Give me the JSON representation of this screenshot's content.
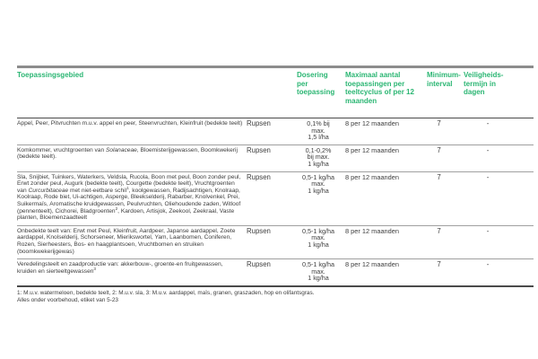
{
  "colors": {
    "accent_green": "#2bb673",
    "body_text": "#3d3d3d",
    "rule_dark": "#4a4a4a",
    "rule_light": "#a0a0a0",
    "rule_top": "#8c8c8c"
  },
  "table": {
    "headers": {
      "toepassingsgebied": "Toepassingsgebied",
      "plaag": "",
      "dosering": "Dosering\nper\ntoepassing",
      "maximaal": "Maximaal aantal\ntoepassingen per\nteeltcyclus of per 12\nmaanden",
      "interval": "Minimum-\ninterval",
      "termijn": "Veiligheids-\ntermijn in\ndagen"
    },
    "rows": [
      {
        "toepassingsgebied": [
          {
            "t": "Appel, Peer, Pitvruchten m.u.v. appel en peer, Steenvruchten, Kleinfruit (bedekte teelt)"
          }
        ],
        "plaag": "Rupsen",
        "dosering": "0,1% bij\nmax.\n1,5 l/ha",
        "maximaal": "8 per 12 maanden",
        "interval": "7",
        "termijn": "-"
      },
      {
        "toepassingsgebied": [
          {
            "t": "Komkommer, vruchtgroenten van "
          },
          {
            "t": "Solanaceae",
            "i": true
          },
          {
            "t": ", Bloemisterijgewassen, Boomkwekerij (bedekte teelt)."
          }
        ],
        "plaag": "Rupsen",
        "dosering": "0,1-0,2%\nbij max.\n1 kg/ha",
        "maximaal": "8 per 12 maanden",
        "interval": "7",
        "termijn": "-"
      },
      {
        "toepassingsgebied": [
          {
            "t": "Sla, Snijbiet, Tuinkers, Waterkers, Veldsla, Rucola, Boon met peul, Boon zonder peul, Erwt zonder peul, Augurk (bedekte teelt), Courgette (bedekte teelt), Vruchtgroenten van "
          },
          {
            "t": "Curcurbitaceae",
            "i": true
          },
          {
            "t": " met niet-eetbare schil"
          },
          {
            "t": "1",
            "sup": true
          },
          {
            "t": ", koolgewassen, Radijsachtigen, Knolraap, Koolraap, Rode biet, Ui-achtigen, Asperge, Bleekselderij, Rabarber, Knolvenkel, Prei, Suikermaïs, Aromatische kruidgewassen, Peulvruchten, Oliehoudende zaden, Witloof (pennenteelt), Cichorei, Bladgroenten"
          },
          {
            "t": "2",
            "sup": true
          },
          {
            "t": ", Kardoen, Artisjok, Zeekool, Zeekraal, Vaste planten, Bloemenzaadteelt"
          }
        ],
        "plaag": "Rupsen",
        "dosering": "0,5-1 kg/ha\nmax.\n1 kg/ha",
        "maximaal": "8 per 12 maanden",
        "interval": "7",
        "termijn": "-"
      },
      {
        "toepassingsgebied": [
          {
            "t": "Onbedekte teelt van: Erwt met Peul, Kleinfruit, Aardpeer, Japanse aardappel, Zoete aardappel, Knolselderij, Schorseneer, Mierikswortel, Yam, Laanbomen, Coniferen, Rozen, Sierheesters, Bos- en haagplantsoen, Vruchtbomen en struiken (boomkwekerijgewas)"
          }
        ],
        "plaag": "Rupsen",
        "dosering": "0,5-1 kg/ha\nmax.\n1 kg/ha",
        "maximaal": "8 per 12 maanden",
        "interval": "7",
        "termijn": "-"
      },
      {
        "toepassingsgebied": [
          {
            "t": "Veredelingsteelt en zaadproductie van: akkerbouw-, groente-en fruitgewassen, kruiden en sierteeltgewassen"
          },
          {
            "t": "3",
            "sup": true
          }
        ],
        "plaag": "Rupsen",
        "dosering": "0,5-1 kg/ha\nmax.\n1 kg/ha",
        "maximaal": "8 per 12 maanden",
        "interval": "7",
        "termijn": "-"
      }
    ]
  },
  "footnotes": {
    "exceptions": "1: M.u.v. watermeloen, bedekte teelt, 2: M.u.v. sla, 3: M.u.v. aardappel, maïs, granen, graszaden, hop en olifantsgras.",
    "disclaimer": "Alles onder voorbehoud, etiket van 5-23"
  }
}
